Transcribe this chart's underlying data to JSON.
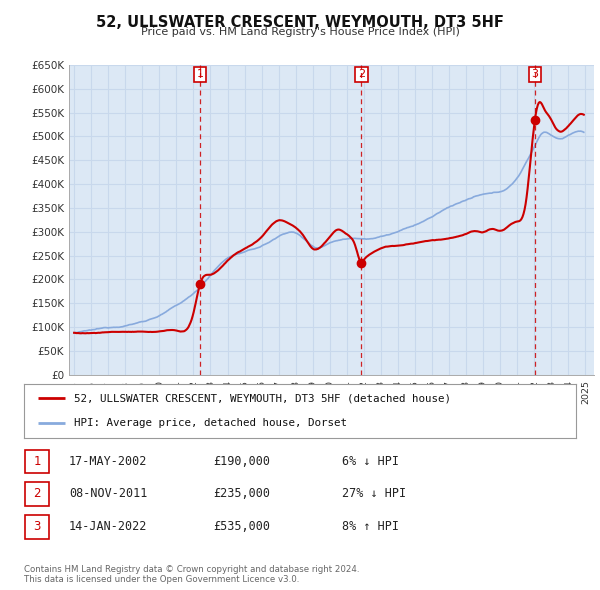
{
  "title": "52, ULLSWATER CRESCENT, WEYMOUTH, DT3 5HF",
  "subtitle": "Price paid vs. HM Land Registry's House Price Index (HPI)",
  "plot_bg_color": "#dce8f5",
  "grid_color": "#c8d8ec",
  "ylim": [
    0,
    650000
  ],
  "yticks": [
    0,
    50000,
    100000,
    150000,
    200000,
    250000,
    300000,
    350000,
    400000,
    450000,
    500000,
    550000,
    600000,
    650000
  ],
  "ytick_labels": [
    "£0",
    "£50K",
    "£100K",
    "£150K",
    "£200K",
    "£250K",
    "£300K",
    "£350K",
    "£400K",
    "£450K",
    "£500K",
    "£550K",
    "£600K",
    "£650K"
  ],
  "xlim_start": 1994.7,
  "xlim_end": 2025.5,
  "sales": [
    {
      "year": 2002.38,
      "price": 190000,
      "label": "1"
    },
    {
      "year": 2011.85,
      "price": 235000,
      "label": "2"
    },
    {
      "year": 2022.04,
      "price": 535000,
      "label": "3"
    }
  ],
  "legend_label_red": "52, ULLSWATER CRESCENT, WEYMOUTH, DT3 5HF (detached house)",
  "legend_label_blue": "HPI: Average price, detached house, Dorset",
  "table_rows": [
    {
      "num": "1",
      "date": "17-MAY-2002",
      "price": "£190,000",
      "pct": "6% ↓ HPI"
    },
    {
      "num": "2",
      "date": "08-NOV-2011",
      "price": "£235,000",
      "pct": "27% ↓ HPI"
    },
    {
      "num": "3",
      "date": "14-JAN-2022",
      "price": "£535,000",
      "pct": "8% ↑ HPI"
    }
  ],
  "footer": "Contains HM Land Registry data © Crown copyright and database right 2024.\nThis data is licensed under the Open Government Licence v3.0.",
  "red_line_color": "#cc0000",
  "blue_line_color": "#88aadd",
  "vline_color": "#cc0000",
  "dot_color": "#cc0000",
  "label_box_color": "#cc0000"
}
